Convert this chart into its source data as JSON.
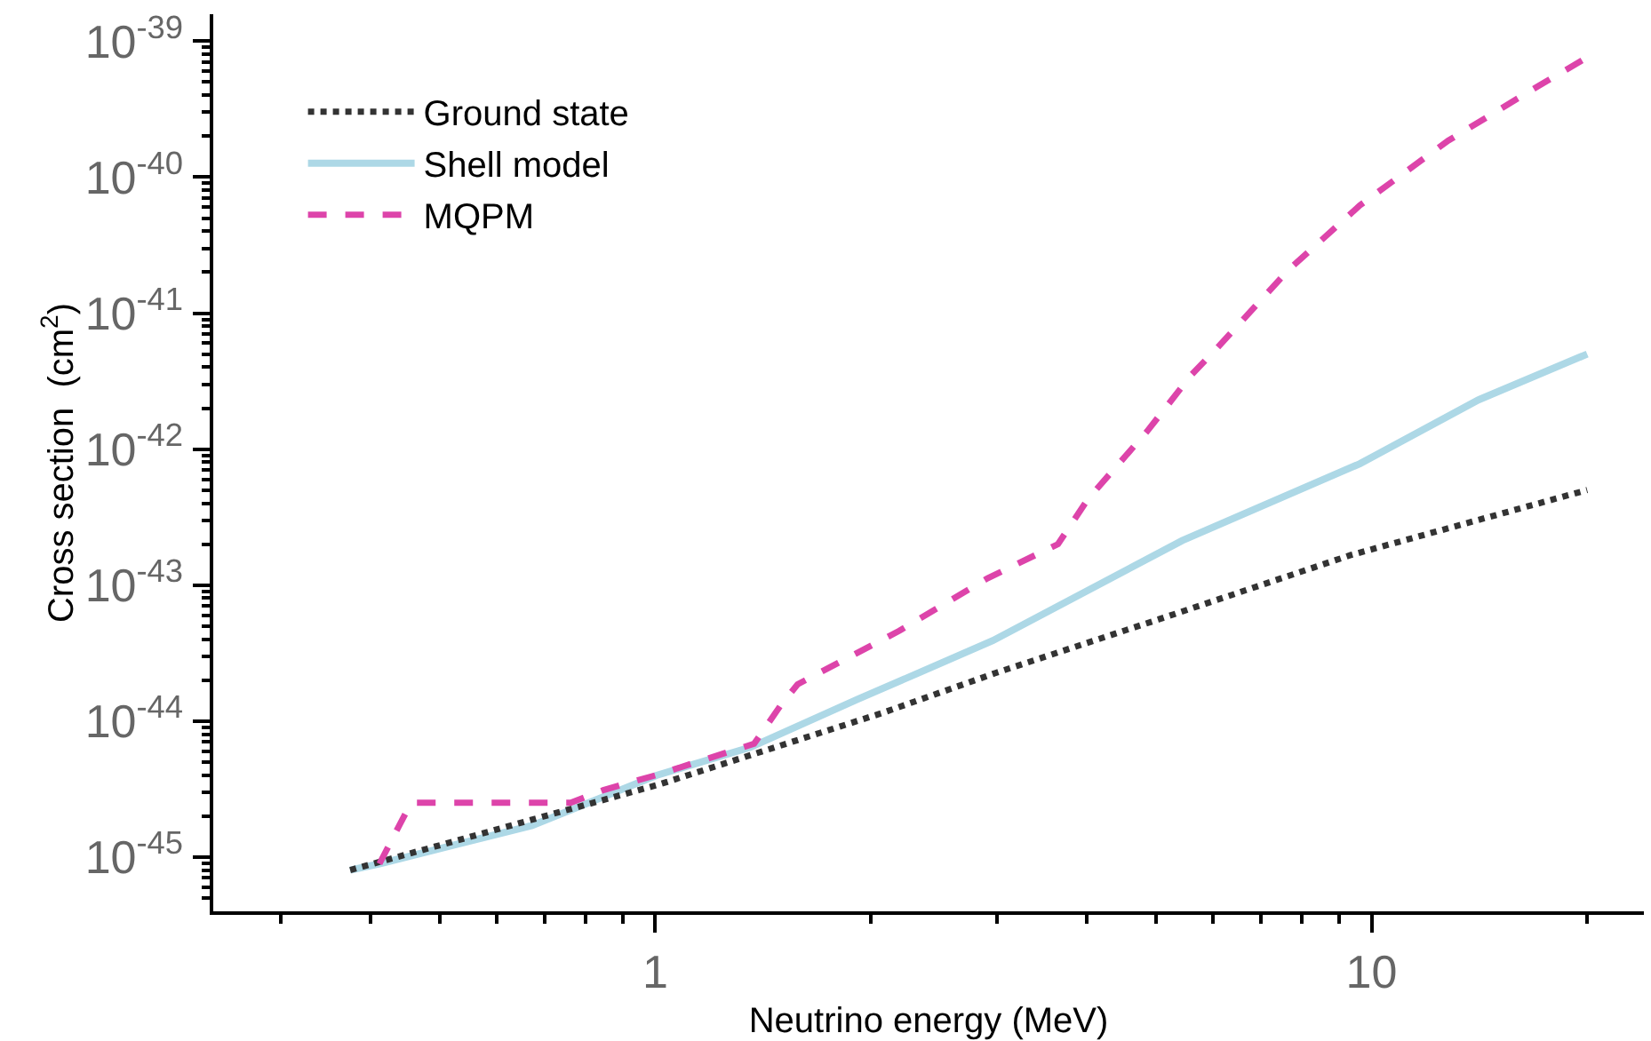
{
  "chart_data": {
    "type": "line",
    "xlabel": "Neutrino energy (MeV)",
    "ylabel": "Cross section  (cm$^{2}$)",
    "log": "xy",
    "grid": false,
    "legend": "top left",
    "marker": "none",
    "xlim": [
      0.2415,
      24
    ],
    "xticks": [
      {
        "value": 0.3,
        "label": null
      },
      {
        "value": 0.4,
        "label": null
      },
      {
        "value": 0.5,
        "label": null
      },
      {
        "value": 0.6,
        "label": null
      },
      {
        "value": 0.7,
        "label": null
      },
      {
        "value": 0.8,
        "label": null
      },
      {
        "value": 0.9,
        "label": null
      },
      1,
      {
        "value": 2,
        "label": null
      },
      {
        "value": 3,
        "label": null
      },
      {
        "value": 4,
        "label": null
      },
      {
        "value": 5,
        "label": null
      },
      {
        "value": 6,
        "label": null
      },
      {
        "value": 7,
        "label": null
      },
      {
        "value": 8,
        "label": null
      },
      {
        "value": 9,
        "label": null
      },
      10,
      {
        "value": 20,
        "label": null
      }
    ],
    "ylim": [
      3.98e-46,
      1.58e-39
    ],
    "yticks": [
      {
        "value": 5e-46,
        "label": null
      },
      {
        "value": 6e-46,
        "label": null
      },
      {
        "value": 7e-46,
        "label": null
      },
      {
        "value": 8e-46,
        "label": null
      },
      {
        "value": 9e-46,
        "label": null
      },
      {
        "value": 1e-45,
        "label": "10$^{-45}$"
      },
      {
        "value": 2e-45,
        "label": null
      },
      {
        "value": 3e-45,
        "label": null
      },
      {
        "value": 4e-45,
        "label": null
      },
      {
        "value": 5e-45,
        "label": null
      },
      {
        "value": 6e-45,
        "label": null
      },
      {
        "value": 7e-45,
        "label": null
      },
      {
        "value": 8e-45,
        "label": null
      },
      {
        "value": 9e-45,
        "label": null
      },
      {
        "value": 1e-44,
        "label": "10$^{-44}$"
      },
      {
        "value": 2e-44,
        "label": null
      },
      {
        "value": 3e-44,
        "label": null
      },
      {
        "value": 4e-44,
        "label": null
      },
      {
        "value": 5e-44,
        "label": null
      },
      {
        "value": 6e-44,
        "label": null
      },
      {
        "value": 7e-44,
        "label": null
      },
      {
        "value": 8e-44,
        "label": null
      },
      {
        "value": 9e-44,
        "label": null
      },
      {
        "value": 1e-43,
        "label": "10$^{-43}$"
      },
      {
        "value": 2e-43,
        "label": null
      },
      {
        "value": 3e-43,
        "label": null
      },
      {
        "value": 4e-43,
        "label": null
      },
      {
        "value": 5e-43,
        "label": null
      },
      {
        "value": 6e-43,
        "label": null
      },
      {
        "value": 7e-43,
        "label": null
      },
      {
        "value": 8e-43,
        "label": null
      },
      {
        "value": 9e-43,
        "label": null
      },
      {
        "value": 1e-42,
        "label": "10$^{-42}$"
      },
      {
        "value": 2e-42,
        "label": null
      },
      {
        "value": 3e-42,
        "label": null
      },
      {
        "value": 4e-42,
        "label": null
      },
      {
        "value": 5e-42,
        "label": null
      },
      {
        "value": 6e-42,
        "label": null
      },
      {
        "value": 7e-42,
        "label": null
      },
      {
        "value": 8e-42,
        "label": null
      },
      {
        "value": 9e-42,
        "label": null
      },
      {
        "value": 1e-41,
        "label": "10$^{-41}$"
      },
      {
        "value": 2e-41,
        "label": null
      },
      {
        "value": 3e-41,
        "label": null
      },
      {
        "value": 4e-41,
        "label": null
      },
      {
        "value": 5e-41,
        "label": null
      },
      {
        "value": 6e-41,
        "label": null
      },
      {
        "value": 7e-41,
        "label": null
      },
      {
        "value": 8e-41,
        "label": null
      },
      {
        "value": 9e-41,
        "label": null
      },
      {
        "value": 1e-40,
        "label": "10$^{-40}$"
      },
      {
        "value": 2e-40,
        "label": null
      },
      {
        "value": 3e-40,
        "label": null
      },
      {
        "value": 4e-40,
        "label": null
      },
      {
        "value": 5e-40,
        "label": null
      },
      {
        "value": 6e-40,
        "label": null
      },
      {
        "value": 7e-40,
        "label": null
      },
      {
        "value": 8e-40,
        "label": null
      },
      {
        "value": 9e-40,
        "label": null
      },
      {
        "value": 1e-39,
        "label": "10$^{-39}$"
      }
    ],
    "series": [
      {
        "name": "Ground state",
        "color": "#333333",
        "line_style": "dotted",
        "x": [
          0.375,
          0.492,
          1.01,
          2.08,
          2.99,
          5.05,
          9.35,
          20
        ],
        "values": [
          8e-46,
          1.19e-45,
          3.4e-45,
          1.15e-44,
          2.26e-44,
          5.6e-44,
          1.66e-43,
          5e-43
        ]
      },
      {
        "name": "Shell model",
        "color": "#add8e6",
        "line_style": "solid",
        "x": [
          0.375,
          0.412,
          0.673,
          1.004,
          1.358,
          1.915,
          2.96,
          5.44,
          9.63,
          14.1,
          20
        ],
        "values": [
          8e-46,
          8.9e-46,
          1.7e-45,
          3.98e-45,
          6.4e-45,
          1.44e-44,
          3.9e-44,
          2.12e-43,
          7.8e-43,
          2.3e-42,
          5e-42
        ]
      },
      {
        "name": "MQPM",
        "color": "#dd44aa",
        "line_style": "dashed",
        "x": [
          0.412,
          0.456,
          0.762,
          0.846,
          1.0,
          1.374,
          1.496,
          1.58,
          2.19,
          2.91,
          3.65,
          4.02,
          4.86,
          5.6,
          6.1,
          7.65,
          9.63,
          12.8,
          17.0,
          20
        ],
        "values": [
          8.9e-46,
          2.5e-45,
          2.5e-45,
          3.1e-45,
          3.98e-45,
          6.8e-45,
          1.3e-44,
          1.86e-44,
          4.6e-44,
          1.12e-43,
          2e-43,
          4.3e-43,
          1.35e-42,
          3.5e-42,
          5.6e-42,
          2.07e-41,
          6.2e-41,
          1.86e-40,
          4.6e-40,
          7.6e-40
        ]
      }
    ]
  }
}
